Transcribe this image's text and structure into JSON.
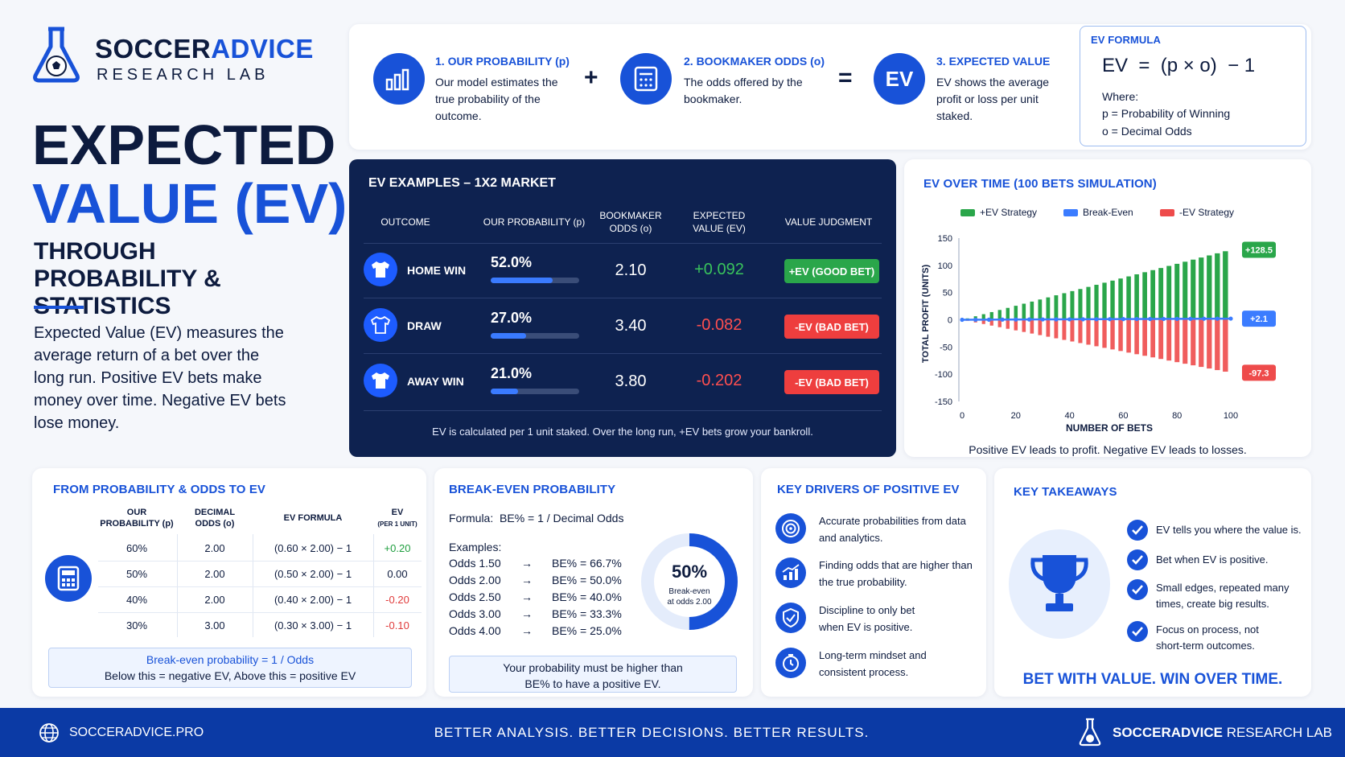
{
  "brand": {
    "name_a": "SOCCER",
    "name_b": "ADVICE",
    "subline": "RESEARCH LAB"
  },
  "hero": {
    "title_line1": "EXPECTED",
    "title_line2": "VALUE (EV)",
    "subtitle": "THROUGH PROBABILITY & STATISTICS",
    "intro": "Expected Value (EV) measures the average return of a bet over the long run. Positive EV bets make money over time. Negative EV bets lose money."
  },
  "steps": [
    {
      "title": "1. OUR PROBABILITY (p)",
      "text": "Our model estimates the true probability of the outcome.",
      "icon": "bar-chart-icon"
    },
    {
      "title": "2. BOOKMAKER ODDS (o)",
      "text": "The odds offered by the bookmaker.",
      "icon": "calculator-icon"
    },
    {
      "title": "3. EXPECTED VALUE",
      "text": "EV shows the average profit or loss per unit staked.",
      "icon": "ev-badge-icon",
      "badge": "EV"
    }
  ],
  "operators": {
    "plus": "+",
    "equals": "="
  },
  "formula_box": {
    "heading": "EV FORMULA",
    "formula": "EV  =  (p × o)  − 1",
    "where": "Where:",
    "p_def": "p = Probability of Winning",
    "o_def": "o = Decimal Odds"
  },
  "examples": {
    "heading": "EV EXAMPLES – 1X2 MARKET",
    "columns": [
      "OUTCOME",
      "OUR PROBABILITY (p)",
      "BOOKMAKER ODDS (o)",
      "EXPECTED VALUE (EV)",
      "VALUE JUDGMENT"
    ],
    "rows": [
      {
        "outcome": "HOME WIN",
        "prob": "52.0%",
        "prob_fraction": 0.52,
        "odds": "2.10",
        "ev": "+0.092",
        "judgment": "+EV (GOOD BET)",
        "positive": true
      },
      {
        "outcome": "DRAW",
        "prob": "27.0%",
        "prob_fraction": 0.27,
        "odds": "3.40",
        "ev": "-0.082",
        "judgment": "-EV (BAD BET)",
        "positive": false
      },
      {
        "outcome": "AWAY WIN",
        "prob": "21.0%",
        "prob_fraction": 0.21,
        "odds": "3.80",
        "ev": "-0.202",
        "judgment": "-EV (BAD BET)",
        "positive": false
      }
    ],
    "footnote": "EV is calculated per 1 unit staked. Over the long run, +EV bets grow your bankroll."
  },
  "chart_data": {
    "type": "bar",
    "title": "EV OVER TIME (100 BETS SIMULATION)",
    "xlabel": "NUMBER OF BETS",
    "ylabel": "TOTAL PROFIT (UNITS)",
    "xlim": [
      0,
      100
    ],
    "ylim": [
      -150,
      150
    ],
    "x_ticks": [
      0,
      20,
      40,
      60,
      80,
      100
    ],
    "y_ticks": [
      150,
      100,
      50,
      0,
      -50,
      -100,
      -150
    ],
    "legend": "top",
    "grid": false,
    "series": [
      {
        "name": "+EV Strategy",
        "color": "#2aa64a",
        "end_label": "+128.5",
        "end_value": 128.5,
        "slope": 1.285
      },
      {
        "name": "Break-Even",
        "color": "#3b7cff",
        "end_label": "+2.1",
        "end_value": 2.1,
        "slope": 0.021
      },
      {
        "name": "-EV Strategy",
        "color": "#ee4b4b",
        "end_label": "-97.3",
        "end_value": -97.3,
        "slope": -0.973
      }
    ],
    "caption": "Positive EV leads to profit. Negative EV leads to losses."
  },
  "prob_odds": {
    "heading": "FROM PROBABILITY & ODDS TO EV",
    "columns": [
      "OUR PROBABILITY (p)",
      "DECIMAL ODDS (o)",
      "EV FORMULA",
      "EV"
    ],
    "ev_sub": "(PER 1 UNIT)",
    "rows": [
      {
        "p": "60%",
        "o": "2.00",
        "formula": "(0.60 × 2.00) − 1",
        "ev": "+0.20",
        "color": "#1e9e3e"
      },
      {
        "p": "50%",
        "o": "2.00",
        "formula": "(0.50 × 2.00) − 1",
        "ev": "0.00",
        "color": "#0d1b3e"
      },
      {
        "p": "40%",
        "o": "2.00",
        "formula": "(0.40 × 2.00) − 1",
        "ev": "-0.20",
        "color": "#e03a3a"
      },
      {
        "p": "30%",
        "o": "3.00",
        "formula": "(0.30 × 3.00) − 1",
        "ev": "-0.10",
        "color": "#e03a3a"
      }
    ],
    "note_line1": "Break-even probability = 1 / Odds",
    "note_line2": "Below this = negative EV, Above this = positive EV"
  },
  "break_even": {
    "heading": "BREAK-EVEN PROBABILITY",
    "formula": "Formula:  BE% = 1 / Decimal Odds",
    "examples_label": "Examples:",
    "examples": [
      {
        "odds": "Odds 1.50",
        "be": "BE% = 66.7%"
      },
      {
        "odds": "Odds 2.00",
        "be": "BE% = 50.0%"
      },
      {
        "odds": "Odds 2.50",
        "be": "BE% = 40.0%"
      },
      {
        "odds": "Odds 3.00",
        "be": "BE% = 33.3%"
      },
      {
        "odds": "Odds 4.00",
        "be": "BE% = 25.0%"
      }
    ],
    "arrow": "→",
    "donut_value": "50%",
    "donut_fraction": 0.5,
    "donut_sub1": "Break-even",
    "donut_sub2": "at odds 2.00",
    "note": "Your probability must be higher than BE% to have a positive EV."
  },
  "drivers": {
    "heading": "KEY DRIVERS OF POSITIVE EV",
    "items": [
      {
        "text": "Accurate probabilities from data and analytics.",
        "icon": "target-icon"
      },
      {
        "text": "Finding odds that are higher than the true probability.",
        "icon": "trend-chart-icon"
      },
      {
        "text": "Discipline to only bet when EV is positive.",
        "icon": "shield-check-icon"
      },
      {
        "text": "Long-term mindset and consistent process.",
        "icon": "clock-icon"
      }
    ]
  },
  "takeaways": {
    "heading": "KEY TAKEAWAYS",
    "items": [
      "EV tells you where the value is.",
      "Bet when EV is positive.",
      "Small edges, repeated many times, create big results.",
      "Focus on process, not short-term outcomes."
    ],
    "slogan": "BET WITH VALUE. WIN OVER TIME."
  },
  "footer": {
    "website": "SOCCERADVICE.PRO",
    "tagline": "BETTER ANALYSIS. BETTER DECISIONS. BETTER RESULTS.",
    "brand_a": "SOCCERADVICE",
    "brand_b": " RESEARCH LAB"
  },
  "colors": {
    "accent": "#1852d8",
    "navy": "#0e2250",
    "green": "#2aa64a",
    "red": "#ee4b4b",
    "footer": "#0b3aa5"
  }
}
